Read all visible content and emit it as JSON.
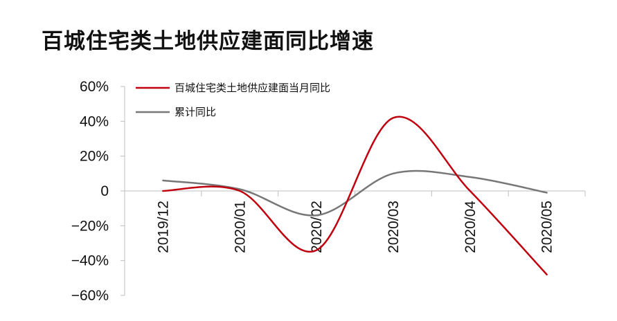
{
  "title": "百城住宅类土地供应建面同比增速",
  "chart_data": {
    "type": "line",
    "title": "百城住宅类土地供应建面同比增速",
    "x": [
      "2019/12",
      "2020/01",
      "2020/02",
      "2020/03",
      "2020/04",
      "2020/05"
    ],
    "y_ticks": [
      "60%",
      "40%",
      "20%",
      "0",
      "−20%",
      "−40%",
      "−60%"
    ],
    "ylim": [
      -60,
      60
    ],
    "series": [
      {
        "name": "百城住宅类土地供应建面当月同比",
        "color": "#c0000e",
        "values": [
          0,
          0,
          -34,
          42,
          0,
          -48
        ]
      },
      {
        "name": "累计同比",
        "color": "#777777",
        "values": [
          6,
          1,
          -14,
          10,
          8,
          -1
        ]
      }
    ],
    "legend_position": "top",
    "grid": false
  }
}
